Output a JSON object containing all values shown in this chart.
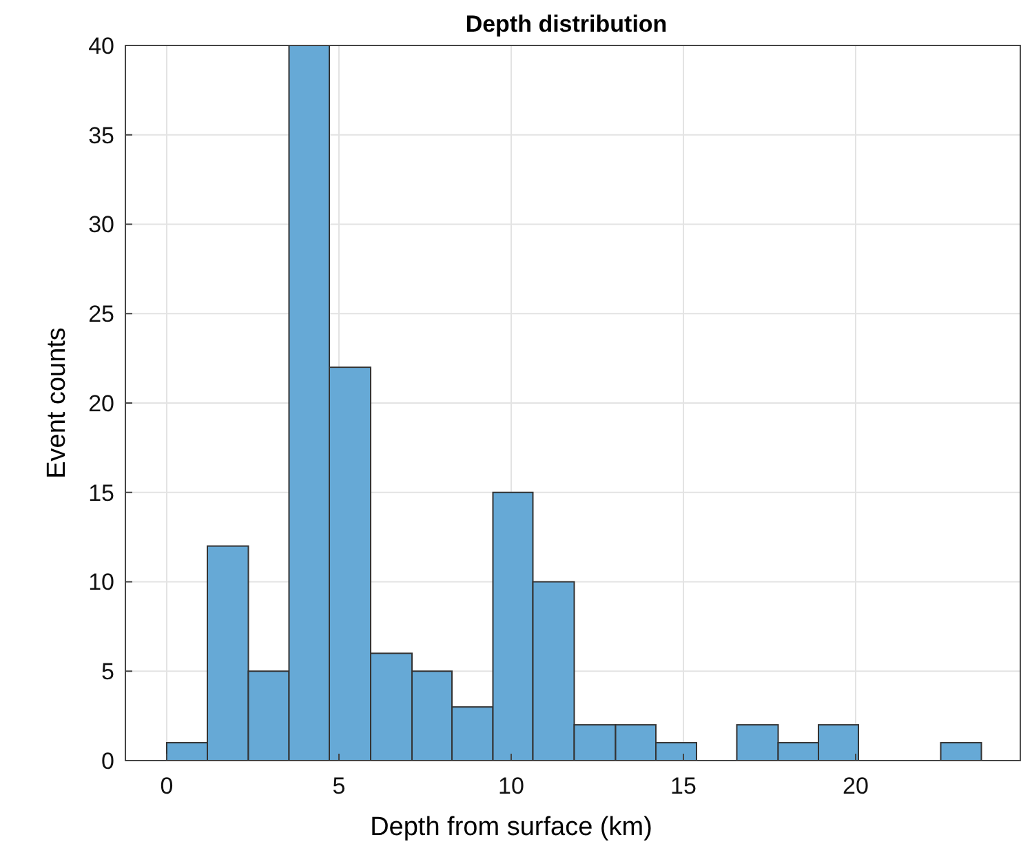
{
  "chart_data": {
    "type": "histogram",
    "title": "Depth distribution",
    "xlabel": "Depth from surface (km)",
    "ylabel": "Event counts",
    "bins": [
      0,
      1.18,
      2.37,
      3.55,
      4.72,
      5.92,
      7.12,
      8.28,
      9.47,
      10.63,
      11.83,
      13.03,
      14.2,
      15.38,
      16.55,
      17.75,
      18.92,
      20.08,
      22.47,
      23.65
    ],
    "values": [
      1,
      12,
      5,
      40,
      22,
      6,
      5,
      3,
      15,
      10,
      2,
      2,
      1,
      0,
      2,
      1,
      2,
      0,
      1
    ],
    "color": "#66a9d6",
    "xlim": [
      -1.2,
      24.8
    ],
    "xticks": [
      0,
      5,
      10,
      15,
      20
    ],
    "ylim": [
      0,
      40
    ],
    "yticks": [
      0,
      5,
      10,
      15,
      20,
      25,
      30,
      35,
      40
    ],
    "grid": true
  }
}
